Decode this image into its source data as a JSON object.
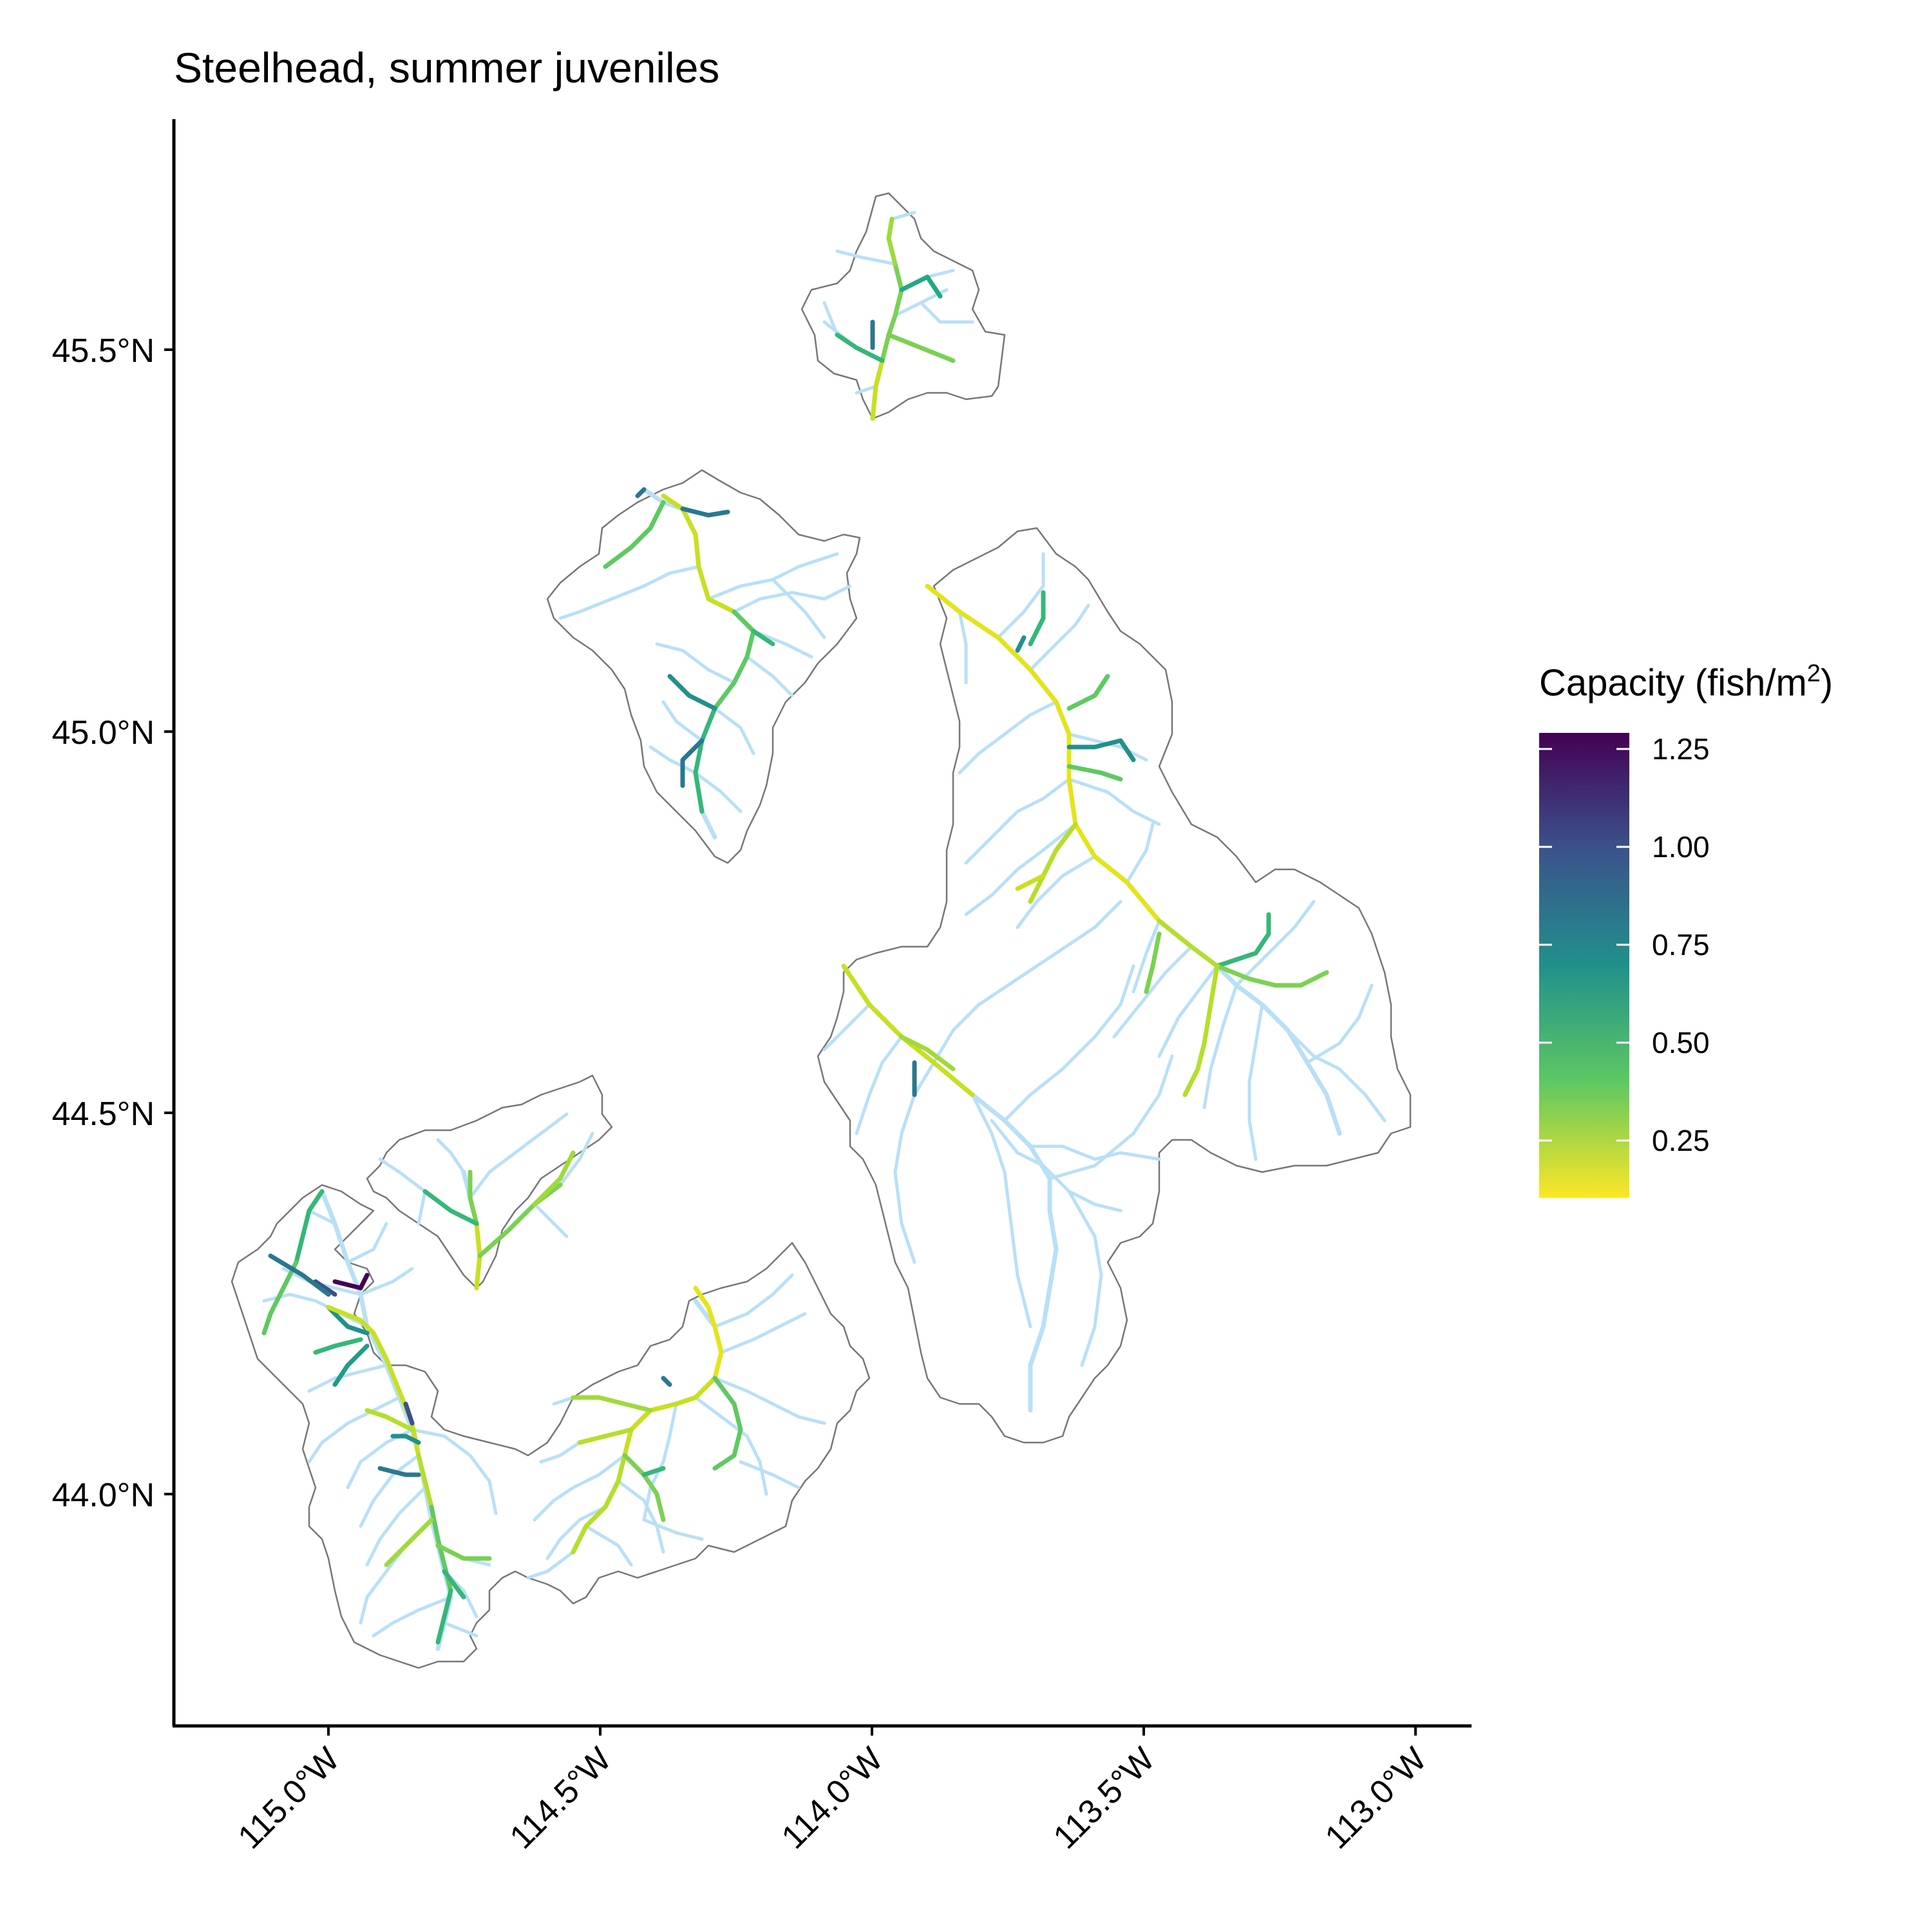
{
  "map": {
    "title": "Steelhead, summer juveniles",
    "x_axis": {
      "ticks": [
        "115.0°W",
        "114.5°W",
        "114.0°W",
        "113.5°W",
        "113.0°W"
      ]
    },
    "y_axis": {
      "ticks": [
        "45.5°N",
        "45.0°N",
        "44.5°N",
        "44.0°N"
      ]
    },
    "legend": {
      "title_prefix": "Capacity (fish/m",
      "title_sup": "2",
      "title_suffix": ")",
      "ticks": [
        "1.25",
        "1.00",
        "0.75",
        "0.50",
        "0.25"
      ],
      "gradient_colors": [
        "#440154",
        "#3b528b",
        "#21908c",
        "#5dc863",
        "#fde725"
      ]
    },
    "colors": {
      "stream_base": "#b8e0f7",
      "basin_outline": "#777777"
    }
  }
}
